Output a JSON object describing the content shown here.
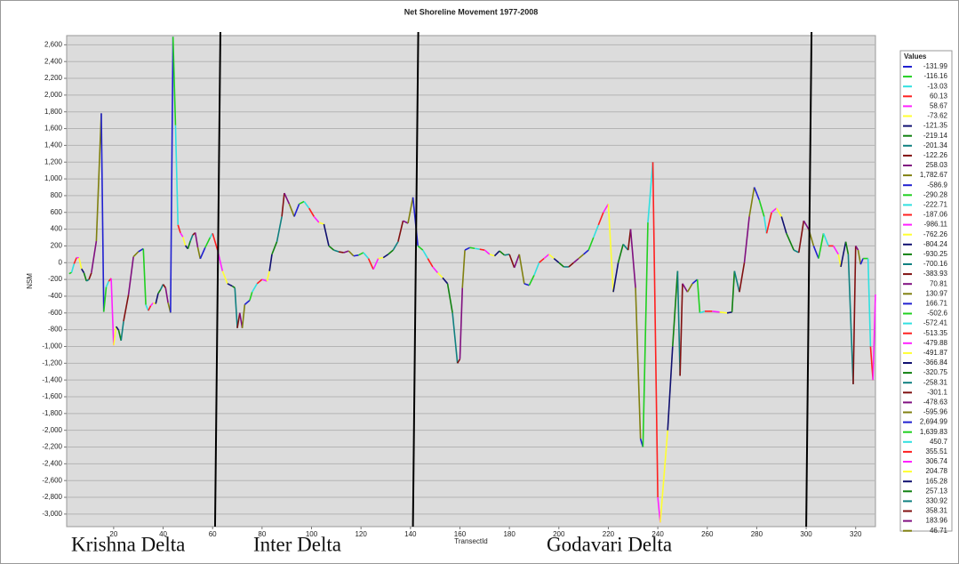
{
  "chart_data": {
    "type": "line",
    "title": "Net Shoreline Movement 1977-2008",
    "x_label": "TransectId",
    "y_label": "NSM",
    "legend_title": "Values",
    "legend_labels": [
      "-131.99",
      "-116.16",
      "-13.03",
      "60.13",
      "58.67",
      "-73.62",
      "-121.35",
      "-219.14",
      "-201.34",
      "-122.26",
      "258.03",
      "1,782.67",
      "-586.9",
      "-290.28",
      "-222.71",
      "-187.06",
      "-986.11",
      "-762.26",
      "-804.24",
      "-930.25",
      "-700.16",
      "-383.93",
      "70.81",
      "130.97",
      "166.71",
      "-502.6",
      "-572.41",
      "-513.35",
      "-479.88",
      "-491.87",
      "-366.84",
      "-320.75",
      "-258.31",
      "-301.1",
      "-478.63",
      "-595.96",
      "2,694.99",
      "1,639.83",
      "450.7",
      "355.51",
      "306.74",
      "204.78",
      "165.28",
      "257.13",
      "330.92",
      "358.31",
      "183.96",
      "46.71"
    ],
    "palette": [
      "#2020d0",
      "#20d020",
      "#30e0e0",
      "#ff2020",
      "#ff20ff",
      "#ffff30",
      "#101070",
      "#108010",
      "#108080",
      "#801010",
      "#801080",
      "#808010"
    ],
    "annotations": [
      "Krishna Delta",
      "Inter Delta",
      "Godavari Delta"
    ],
    "dividers": [
      61,
      141,
      300
    ],
    "x": [
      2,
      3,
      4,
      5,
      6,
      7,
      8,
      9,
      10,
      11,
      13,
      15,
      16,
      17,
      18,
      19,
      20,
      21,
      22,
      23,
      24,
      26,
      28,
      30,
      32,
      33,
      34,
      35,
      36,
      37,
      38,
      39,
      40,
      41,
      42,
      43,
      44,
      45,
      46,
      47,
      48,
      49,
      50,
      51,
      52,
      53,
      54,
      55,
      57,
      59,
      60,
      62,
      64,
      66,
      68,
      69,
      70,
      71,
      72,
      73,
      75,
      76,
      78,
      80,
      82,
      83,
      84,
      86,
      88,
      89,
      91,
      93,
      95,
      97,
      99,
      101,
      103,
      105,
      107,
      109,
      111,
      113,
      115,
      117,
      119,
      121,
      123,
      125,
      127,
      129,
      131,
      133,
      135,
      137,
      139,
      141,
      143,
      145,
      147,
      149,
      151,
      153,
      155,
      157,
      159,
      160,
      161,
      162,
      164,
      166,
      168,
      170,
      172,
      174,
      176,
      178,
      180,
      182,
      184,
      186,
      188,
      190,
      192,
      194,
      196,
      198,
      200,
      202,
      204,
      206,
      208,
      210,
      212,
      214,
      216,
      218,
      220,
      222,
      224,
      226,
      228,
      229,
      231,
      233,
      234,
      236,
      238,
      240,
      241,
      244,
      246,
      248,
      249,
      250,
      252,
      254,
      256,
      257,
      259,
      262,
      265,
      268,
      270,
      271,
      273,
      275,
      277,
      279,
      281,
      283,
      284,
      286,
      288,
      290,
      292,
      295,
      297,
      299,
      301,
      303,
      305,
      307,
      309,
      311,
      313,
      314,
      316,
      317,
      319,
      320,
      321,
      322,
      323,
      325,
      326,
      327,
      328
    ],
    "values": [
      -131.99,
      -116.16,
      -13.03,
      60.13,
      58.67,
      -73.62,
      -121.35,
      -219.14,
      -201.34,
      -122.26,
      258.03,
      1782.67,
      -586.9,
      -290.28,
      -222.71,
      -187.06,
      -986.11,
      -762.26,
      -804.24,
      -930.25,
      -700.16,
      -383.93,
      70.81,
      130.97,
      166.71,
      -502.6,
      -572.41,
      -513.35,
      -479.88,
      -491.87,
      -366.84,
      -320.75,
      -258.31,
      -301.1,
      -478.63,
      -595.96,
      2694.99,
      1639.83,
      450.7,
      355.51,
      306.74,
      204.78,
      165.28,
      257.13,
      330.92,
      358.31,
      183.96,
      46.71,
      180,
      300,
      350,
      150,
      -100,
      -250,
      -280,
      -300,
      -780,
      -600,
      -780,
      -500,
      -450,
      -350,
      -250,
      -200,
      -220,
      -100,
      100,
      250,
      550,
      830,
      700,
      550,
      700,
      730,
      650,
      550,
      480,
      460,
      200,
      150,
      130,
      120,
      140,
      80,
      90,
      120,
      50,
      -80,
      50,
      60,
      100,
      150,
      250,
      500,
      470,
      780,
      200,
      150,
      50,
      -50,
      -120,
      -180,
      -250,
      -600,
      -1200,
      -1150,
      -300,
      150,
      180,
      170,
      160,
      150,
      100,
      80,
      140,
      90,
      100,
      -60,
      100,
      -250,
      -270,
      -150,
      0,
      50,
      100,
      50,
      0,
      -50,
      -50,
      0,
      50,
      100,
      150,
      300,
      450,
      600,
      700,
      -350,
      0,
      220,
      150,
      400,
      -300,
      -2100,
      -2200,
      480,
      1200,
      -2800,
      -3100,
      -2000,
      -1000,
      -100,
      -1350,
      -250,
      -350,
      -250,
      -200,
      -600,
      -580,
      -580,
      -590,
      -600,
      -590,
      -100,
      -350,
      0,
      550,
      900,
      750,
      550,
      350,
      600,
      650,
      550,
      350,
      150,
      120,
      500,
      400,
      200,
      50,
      350,
      200,
      200,
      100,
      -50,
      250,
      100,
      -1450,
      200,
      150,
      -20,
      50,
      50,
      -1000,
      -1400,
      -380
    ],
    "xlim": [
      1,
      328
    ],
    "ylim": [
      -3150,
      2710
    ],
    "xticks": [
      20,
      40,
      60,
      80,
      100,
      120,
      140,
      160,
      180,
      200,
      220,
      240,
      260,
      280,
      300,
      320
    ],
    "yticks": [
      {
        "value": -3000,
        "label": "-3,000"
      },
      {
        "value": -2800,
        "label": "-2,800"
      },
      {
        "value": -2600,
        "label": "-2,600"
      },
      {
        "value": -2400,
        "label": "-2,400"
      },
      {
        "value": -2200,
        "label": "-2,200"
      },
      {
        "value": -2000,
        "label": "-2,000"
      },
      {
        "value": -1800,
        "label": "-1,800"
      },
      {
        "value": -1600,
        "label": "-1,600"
      },
      {
        "value": -1400,
        "label": "-1,400"
      },
      {
        "value": -1200,
        "label": "-1,200"
      },
      {
        "value": -1000,
        "label": "-1,000"
      },
      -800,
      -600,
      -400,
      -200,
      0,
      200,
      400,
      600,
      800,
      {
        "value": 1000,
        "label": "1,000"
      },
      {
        "value": 1200,
        "label": "1,200"
      },
      {
        "value": 1400,
        "label": "1,400"
      },
      {
        "value": 1600,
        "label": "1,600"
      },
      {
        "value": 1800,
        "label": "1,800"
      },
      {
        "value": 2000,
        "label": "2,000"
      },
      {
        "value": 2200,
        "label": "2,200"
      },
      {
        "value": 2400,
        "label": "2,400"
      },
      {
        "value": 2600,
        "label": "2,600"
      }
    ],
    "grid": true
  }
}
